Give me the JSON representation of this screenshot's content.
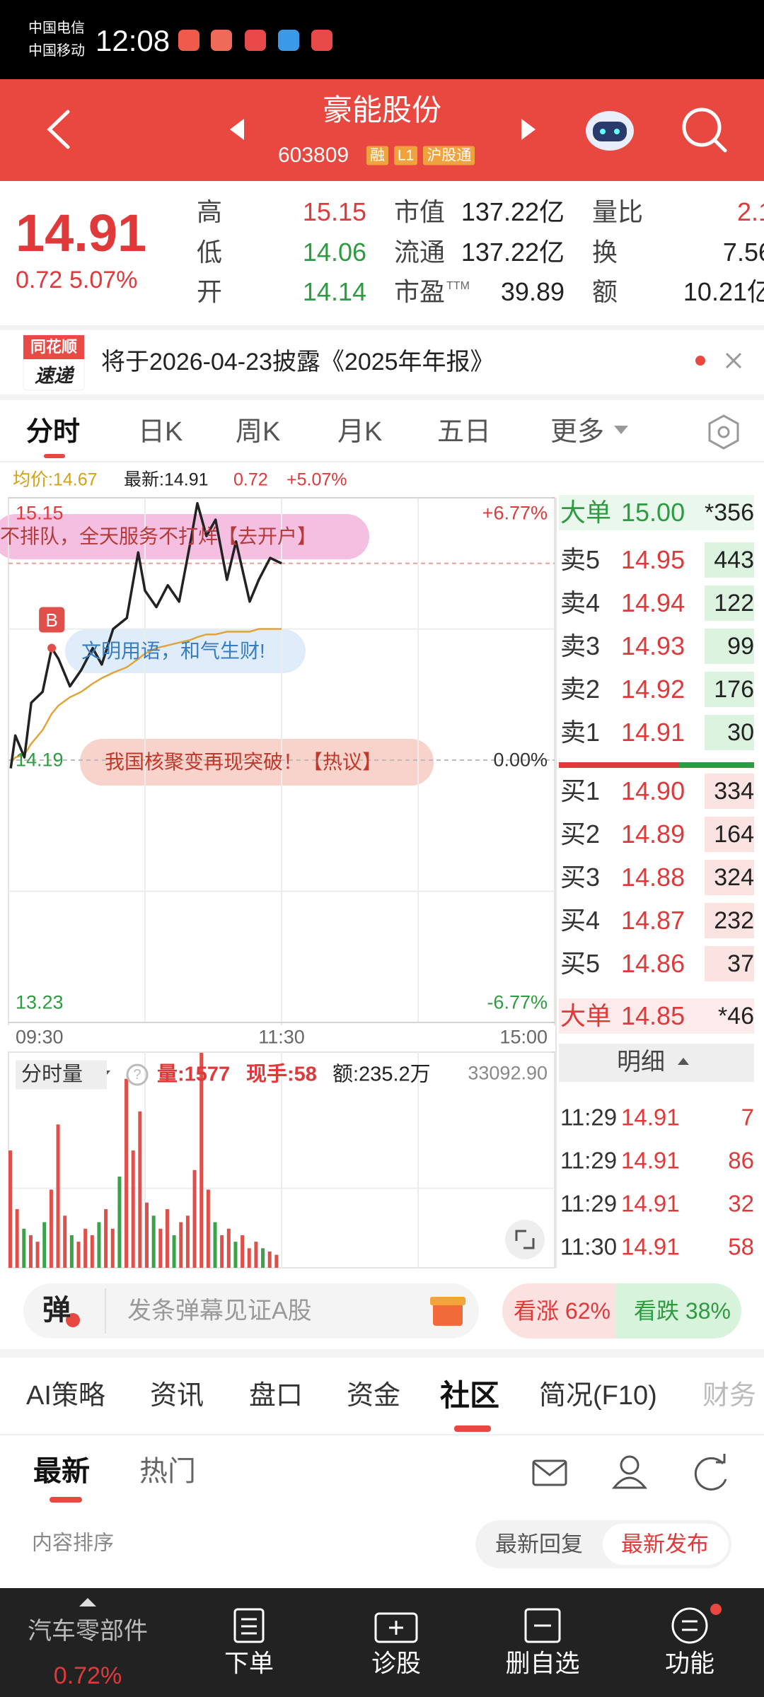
{
  "status_bar": {
    "carrier_1": "中国电信",
    "carrier_2": "中国移动",
    "time": "12:08"
  },
  "header": {
    "title": "豪能股份",
    "code": "603809",
    "tags": [
      "融",
      "L1",
      "沪股通"
    ]
  },
  "quote": {
    "price": "14.91",
    "change": "0.72",
    "change_pct": "5.07%",
    "stats": [
      [
        {
          "label": "高",
          "value": "15.15"
        },
        {
          "label": "低",
          "value": "14.06"
        },
        {
          "label": "开",
          "value": "14.14"
        }
      ],
      [
        {
          "label": "市值",
          "value": "137.22亿"
        },
        {
          "label": "流通",
          "value": "137.22亿"
        },
        {
          "label": "市盈",
          "sup": "TTM",
          "value": "39.89"
        }
      ],
      [
        {
          "label": "量比",
          "value": "2.1"
        },
        {
          "label": "换",
          "value": "7.56"
        },
        {
          "label": "额",
          "value": "10.21亿"
        }
      ]
    ]
  },
  "notice": {
    "logo_top": "同花顺",
    "logo_bottom": "速递",
    "text": "将于2026-04-23披露《2025年年报》"
  },
  "chart_tabs": [
    "分时",
    "日K",
    "周K",
    "月K",
    "五日",
    "更多"
  ],
  "chart_info": {
    "avg": "均价:14.67",
    "latest": "最新:14.91",
    "change": "0.72",
    "change_pct": "+5.07%"
  },
  "banners": [
    "不排队，全天服务不打烊【去开户】",
    "文明用语，和气生财!",
    "我国核聚变再现突破！【热议】"
  ],
  "chart_data": [
    {
      "type": "line",
      "x": [
        1,
        3,
        7,
        10,
        15,
        19,
        22,
        27,
        32,
        37,
        41,
        46,
        52,
        57,
        60,
        65,
        70,
        75,
        80,
        83,
        87,
        91,
        96,
        100,
        106,
        110,
        115,
        120
      ],
      "series": [
        {
          "color": "#222222",
          "values": [
            14.16,
            14.28,
            14.2,
            14.4,
            14.44,
            14.6,
            14.56,
            14.46,
            14.52,
            14.6,
            14.54,
            14.67,
            14.71,
            14.95,
            14.81,
            14.75,
            14.83,
            14.77,
            14.99,
            15.13,
            15.01,
            15.07,
            14.85,
            14.99,
            14.77,
            14.85,
            14.93,
            14.91
          ]
        },
        {
          "color": "#e0a43a",
          "values": [
            14.18,
            14.2,
            14.21,
            14.25,
            14.3,
            14.36,
            14.39,
            14.42,
            14.44,
            14.47,
            14.49,
            14.51,
            14.53,
            14.56,
            14.58,
            14.6,
            14.61,
            14.62,
            14.63,
            14.64,
            14.65,
            14.65,
            14.66,
            14.66,
            14.66,
            14.67,
            14.67,
            14.67
          ]
        }
      ],
      "markers": [
        {
          "label": "B",
          "x": 19
        }
      ],
      "xlim": [
        0,
        240
      ],
      "xticks": [
        {
          "value": 0,
          "label": "09:30"
        },
        {
          "value": 120,
          "label": "11:30"
        },
        {
          "value": 240,
          "label": "15:00"
        }
      ],
      "ylim": [
        13.23,
        15.15
      ],
      "yticks": [
        15.15,
        14.19,
        13.23
      ],
      "y2lim": [
        -6.77,
        6.77
      ],
      "y2ticks": [
        {
          "value": 6.77,
          "label": "+6.77%"
        },
        {
          "value": 0,
          "label": "0.00%"
        },
        {
          "value": -6.77,
          "label": "-6.77%"
        }
      ],
      "grid": true
    },
    {
      "type": "bar",
      "title": "分时量",
      "x": [
        0,
        3,
        6,
        9,
        12,
        15,
        18,
        21,
        24,
        27,
        30,
        33,
        36,
        39,
        42,
        45,
        48,
        51,
        54,
        57,
        60,
        63,
        66,
        69,
        72,
        75,
        78,
        81,
        84,
        87,
        90,
        93,
        96,
        99,
        102,
        105,
        108,
        111,
        114,
        117
      ],
      "values": [
        18000,
        9000,
        6000,
        5000,
        4000,
        7000,
        12000,
        22000,
        8000,
        5000,
        4000,
        6000,
        5000,
        7000,
        9000,
        6000,
        14000,
        29000,
        18000,
        24000,
        10000,
        8000,
        6000,
        9000,
        5000,
        7000,
        8000,
        15000,
        33000,
        12000,
        7000,
        5000,
        6000,
        4000,
        5000,
        3000,
        4000,
        3000,
        2500,
        2000
      ],
      "colors": [
        "#e0504a",
        "#e0504a",
        "#3aa24a",
        "#e0504a",
        "#e0504a",
        "#3aa24a",
        "#e0504a",
        "#e0504a",
        "#e0504a",
        "#3aa24a",
        "#e0504a",
        "#e0504a",
        "#e0504a",
        "#3aa24a",
        "#e0504a",
        "#e0504a",
        "#3aa24a",
        "#e0504a",
        "#e0504a",
        "#e0504a",
        "#e0504a",
        "#3aa24a",
        "#e0504a",
        "#e0504a",
        "#3aa24a",
        "#e0504a",
        "#e0504a",
        "#e0504a",
        "#e0504a",
        "#e0504a",
        "#3aa24a",
        "#e0504a",
        "#e0504a",
        "#3aa24a",
        "#e0504a",
        "#e0504a",
        "#e0504a",
        "#3aa24a",
        "#e0504a",
        "#e0504a"
      ],
      "xlim": [
        0,
        240
      ],
      "ylim": [
        0,
        33092.9
      ],
      "yticks": [
        {
          "value": 33092.9,
          "label": "33092.90"
        }
      ],
      "info": {
        "volume": "量:1577",
        "current": "现手:58",
        "amount": "额:235.2万"
      }
    }
  ],
  "order_book": {
    "big_top": {
      "label": "大单",
      "price": "15.00",
      "volume": "*356"
    },
    "asks": [
      {
        "label": "卖5",
        "price": "14.95",
        "volume": "443"
      },
      {
        "label": "卖4",
        "price": "14.94",
        "volume": "122"
      },
      {
        "label": "卖3",
        "price": "14.93",
        "volume": "99"
      },
      {
        "label": "卖2",
        "price": "14.92",
        "volume": "176"
      },
      {
        "label": "卖1",
        "price": "14.91",
        "volume": "30"
      }
    ],
    "bids": [
      {
        "label": "买1",
        "price": "14.90",
        "volume": "334"
      },
      {
        "label": "买2",
        "price": "14.89",
        "volume": "164"
      },
      {
        "label": "买3",
        "price": "14.88",
        "volume": "324"
      },
      {
        "label": "买4",
        "price": "14.87",
        "volume": "232"
      },
      {
        "label": "买5",
        "price": "14.86",
        "volume": "37"
      }
    ],
    "big_bottom": {
      "label": "大单",
      "price": "14.85",
      "volume": "*46"
    },
    "detail": "明细"
  },
  "trades": [
    {
      "time": "11:29",
      "price": "14.91",
      "volume": "7"
    },
    {
      "time": "11:29",
      "price": "14.91",
      "volume": "86"
    },
    {
      "time": "11:29",
      "price": "14.91",
      "volume": "32"
    },
    {
      "time": "11:30",
      "price": "14.91",
      "volume": "58"
    }
  ],
  "danmu": {
    "icon": "弹",
    "placeholder": "发条弹幕见证A股",
    "rise": "看涨 62%",
    "fall": "看跌 38%"
  },
  "section_tabs": [
    "AI策略",
    "资讯",
    "盘口",
    "资金",
    "社区",
    "简况(F10)",
    "财务"
  ],
  "sub_tabs": [
    "最新",
    "热门"
  ],
  "sort": {
    "label": "内容排序",
    "options": [
      "最新回复",
      "最新发布"
    ]
  },
  "bottom_nav": {
    "sector": "汽车零部件",
    "sector_change": "0.72%",
    "items": [
      "下单",
      "诊股",
      "删自选",
      "功能"
    ]
  }
}
